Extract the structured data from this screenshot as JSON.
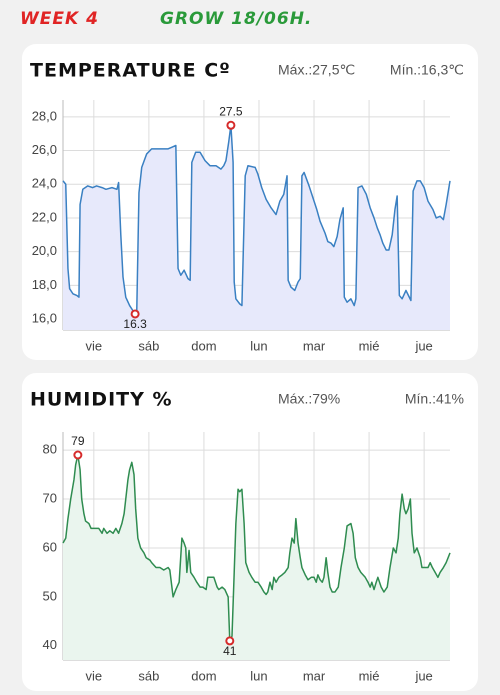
{
  "header": {
    "week": "WEEK 4",
    "grow": "GROW 18/06H."
  },
  "chart_data": [
    {
      "type": "line",
      "title": "TEMPERATURE Cº",
      "max_label": "Máx.:27,5℃",
      "min_label": "Mín.:16,3℃",
      "color": "#3a80c2",
      "fill": "#e7e9fb",
      "grid": true,
      "xlim": [
        0.44,
        7.47
      ],
      "xticks": [
        {
          "value": 1,
          "label": "vie"
        },
        {
          "value": 2,
          "label": "sáb"
        },
        {
          "value": 3,
          "label": "dom"
        },
        {
          "value": 4,
          "label": "lun"
        },
        {
          "value": 5,
          "label": "mar"
        },
        {
          "value": 6,
          "label": "mié"
        },
        {
          "value": 7,
          "label": "jue"
        }
      ],
      "ylim": [
        15.35,
        29
      ],
      "yticks": [
        {
          "value": 16,
          "label": "16,0"
        },
        {
          "value": 18,
          "label": "18,0"
        },
        {
          "value": 20,
          "label": "20,0"
        },
        {
          "value": 22,
          "label": "22,0"
        },
        {
          "value": 24,
          "label": "24,0"
        },
        {
          "value": 26,
          "label": "26,0"
        },
        {
          "value": 28,
          "label": "28,0"
        }
      ],
      "x": [
        0.44,
        0.49,
        0.53,
        0.56,
        0.62,
        0.69,
        0.73,
        0.75,
        0.8,
        0.89,
        0.98,
        1.05,
        1.15,
        1.22,
        1.33,
        1.42,
        1.45,
        1.49,
        1.53,
        1.58,
        1.65,
        1.71,
        1.75,
        1.78,
        1.82,
        1.87,
        1.96,
        2.05,
        2.2,
        2.35,
        2.42,
        2.49,
        2.53,
        2.58,
        2.64,
        2.71,
        2.75,
        2.78,
        2.85,
        2.93,
        3.02,
        3.11,
        3.22,
        3.31,
        3.36,
        3.4,
        3.45,
        3.49,
        3.53,
        3.55,
        3.58,
        3.65,
        3.69,
        3.75,
        3.8,
        3.93,
        3.98,
        4.05,
        4.13,
        4.22,
        4.31,
        4.38,
        4.45,
        4.51,
        4.53,
        4.58,
        4.65,
        4.71,
        4.75,
        4.78,
        4.82,
        4.91,
        4.98,
        5.05,
        5.11,
        5.2,
        5.25,
        5.31,
        5.36,
        5.42,
        5.47,
        5.53,
        5.55,
        5.6,
        5.67,
        5.73,
        5.76,
        5.8,
        5.87,
        5.95,
        6.02,
        6.09,
        6.15,
        6.2,
        6.25,
        6.31,
        6.36,
        6.42,
        6.47,
        6.51,
        6.55,
        6.6,
        6.67,
        6.73,
        6.76,
        6.8,
        6.87,
        6.93,
        7.0,
        7.07,
        7.16,
        7.22,
        7.29,
        7.35,
        7.4,
        7.47
      ],
      "values": [
        24.2,
        24.0,
        19,
        17.8,
        17.5,
        17.4,
        17.3,
        22.8,
        23.7,
        23.9,
        23.8,
        23.9,
        23.8,
        23.7,
        23.8,
        23.7,
        24.1,
        21,
        18.5,
        17.3,
        16.8,
        16.5,
        16.3,
        16.5,
        23.5,
        25,
        25.8,
        26.1,
        26.1,
        26.1,
        26.2,
        26.3,
        19,
        18.6,
        18.9,
        18.4,
        18.3,
        25.3,
        25.9,
        25.9,
        25.4,
        25.1,
        25.1,
        24.9,
        25.1,
        25.4,
        26.5,
        27.5,
        25.3,
        18.2,
        17.2,
        16.9,
        16.8,
        24.5,
        25.1,
        25.0,
        24.6,
        23.8,
        23.1,
        22.6,
        22.2,
        23,
        23.4,
        24.5,
        18.3,
        17.9,
        17.7,
        18.2,
        18.4,
        24.5,
        24.7,
        23.9,
        23.2,
        22.5,
        21.8,
        21.1,
        20.6,
        20.5,
        20.3,
        20.9,
        21.9,
        22.6,
        17.3,
        17.0,
        17.2,
        16.8,
        17.2,
        23.8,
        23.9,
        23.4,
        22.6,
        22.0,
        21.4,
        21.0,
        20.5,
        20.1,
        20.1,
        21.0,
        22.5,
        23.3,
        17.4,
        17.2,
        17.7,
        17.3,
        17.1,
        23.6,
        24.2,
        24.2,
        23.8,
        23.0,
        22.5,
        22.0,
        22.1,
        21.9,
        22.8,
        24.2
      ],
      "markers": [
        {
          "x": 3.49,
          "value": 27.5
        },
        {
          "x": 1.75,
          "value": 16.3
        }
      ]
    },
    {
      "type": "line",
      "title": "HUMIDITY %",
      "max_label": "Máx.:79%",
      "min_label": "Mín.:41%",
      "color": "#2f8c50",
      "fill": "#eaf5ee",
      "grid": true,
      "xlim": [
        0.44,
        7.47
      ],
      "xticks": [
        {
          "value": 1,
          "label": "vie"
        },
        {
          "value": 2,
          "label": "sáb"
        },
        {
          "value": 3,
          "label": "dom"
        },
        {
          "value": 4,
          "label": "lun"
        },
        {
          "value": 5,
          "label": "mar"
        },
        {
          "value": 6,
          "label": "mié"
        },
        {
          "value": 7,
          "label": "jue"
        }
      ],
      "ylim": [
        37.1,
        83.7
      ],
      "yticks": [
        40,
        50,
        60,
        70,
        80
      ],
      "x": [
        0.44,
        0.49,
        0.53,
        0.58,
        0.64,
        0.67,
        0.71,
        0.75,
        0.78,
        0.82,
        0.85,
        0.91,
        0.95,
        1.02,
        1.09,
        1.15,
        1.18,
        1.24,
        1.29,
        1.35,
        1.4,
        1.45,
        1.51,
        1.55,
        1.58,
        1.62,
        1.65,
        1.69,
        1.73,
        1.76,
        1.8,
        1.85,
        1.91,
        1.95,
        2.02,
        2.05,
        2.13,
        2.2,
        2.27,
        2.35,
        2.38,
        2.44,
        2.49,
        2.55,
        2.6,
        2.64,
        2.67,
        2.69,
        2.73,
        2.76,
        2.82,
        2.87,
        2.93,
        2.98,
        3.04,
        3.07,
        3.13,
        3.18,
        3.24,
        3.27,
        3.33,
        3.38,
        3.44,
        3.47,
        3.51,
        3.55,
        3.58,
        3.62,
        3.65,
        3.69,
        3.73,
        3.76,
        3.82,
        3.87,
        3.93,
        3.98,
        4.04,
        4.09,
        4.13,
        4.16,
        4.2,
        4.24,
        4.27,
        4.31,
        4.36,
        4.42,
        4.47,
        4.53,
        4.56,
        4.6,
        4.64,
        4.67,
        4.71,
        4.75,
        4.78,
        4.84,
        4.89,
        4.95,
        5.0,
        5.04,
        5.07,
        5.11,
        5.15,
        5.18,
        5.22,
        5.25,
        5.29,
        5.33,
        5.38,
        5.44,
        5.49,
        5.55,
        5.6,
        5.67,
        5.71,
        5.75,
        5.8,
        5.85,
        5.93,
        5.98,
        6.02,
        6.05,
        6.09,
        6.13,
        6.16,
        6.22,
        6.27,
        6.33,
        6.38,
        6.44,
        6.49,
        6.53,
        6.56,
        6.6,
        6.64,
        6.67,
        6.71,
        6.75,
        6.78,
        6.82,
        6.87,
        6.93,
        6.96,
        7.02,
        7.07,
        7.11,
        7.15,
        7.2,
        7.25,
        7.29,
        7.35,
        7.4,
        7.47
      ],
      "values": [
        61,
        62,
        66,
        70,
        74,
        77,
        79,
        76,
        70,
        67,
        65.5,
        65,
        64,
        64,
        64,
        63,
        64,
        63,
        63.5,
        63,
        64,
        63,
        65,
        67,
        70,
        74,
        76,
        77.5,
        75,
        68,
        62,
        60,
        59,
        58,
        57.5,
        57,
        56,
        56,
        55.5,
        56,
        55.5,
        50,
        51.5,
        53,
        62,
        61,
        60,
        55,
        59.5,
        55,
        54,
        53,
        52,
        52,
        51.5,
        54,
        54,
        54,
        52,
        51.5,
        52,
        51.5,
        50,
        41,
        42,
        55,
        65,
        72,
        71.5,
        72,
        65,
        57,
        55,
        54,
        53,
        53,
        52,
        51,
        50.5,
        51,
        53,
        51.5,
        54,
        53,
        54,
        54.5,
        55,
        56,
        59,
        62,
        61,
        66,
        61,
        58,
        56,
        54.5,
        53.5,
        54,
        54,
        53,
        54.5,
        53.5,
        53,
        54,
        58,
        55,
        52,
        51,
        51,
        52,
        56,
        60,
        64.5,
        65,
        63,
        58,
        56,
        55,
        54,
        53,
        52,
        53,
        51.5,
        53,
        54,
        52,
        51,
        52,
        56,
        60,
        59,
        62,
        67,
        71,
        68,
        67,
        68,
        70,
        63,
        59,
        60,
        58,
        56,
        56,
        56,
        57,
        56,
        55,
        54,
        55,
        56,
        57,
        59
      ],
      "markers": [
        {
          "x": 0.71,
          "value": 79
        },
        {
          "x": 3.47,
          "value": 41
        }
      ]
    }
  ]
}
